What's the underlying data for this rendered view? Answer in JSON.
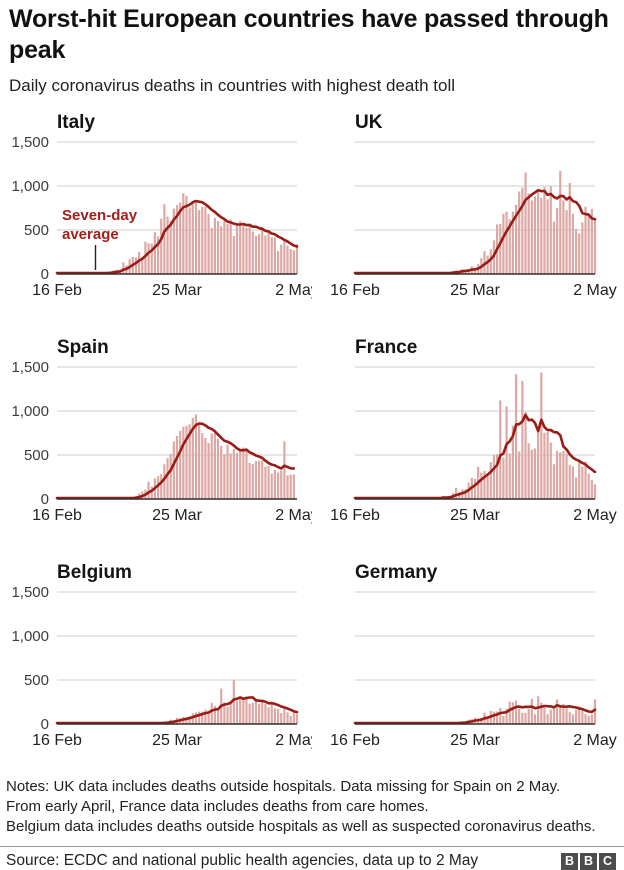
{
  "header": {
    "title": "Worst-hit European countries have passed through peak",
    "subtitle": "Daily coronavirus deaths in countries with highest death toll"
  },
  "footer": {
    "notes_lines": [
      "Notes: UK data includes deaths outside hospitals. Data missing for Spain on 2 May.",
      "From early April, France data includes deaths from care homes.",
      "Belgium data includes deaths outside hospitals as well as suspected coronavirus deaths."
    ],
    "source": "Source: ECDC and national public health agencies, data up to 2 May",
    "logo": [
      "B",
      "B",
      "C"
    ]
  },
  "chart_data": {
    "type": "bar",
    "layout": "small-multiples-2x3",
    "line_overlay": "seven-day trailing average computed from bars",
    "x_start_date": "16 Feb",
    "x_end_date": "2 May",
    "n_days": 77,
    "x_ticks": [
      "16 Feb",
      "25 Mar",
      "2 May"
    ],
    "x_tick_days": [
      0,
      38,
      76
    ],
    "y_ticks": [
      "0",
      "500",
      "1,000",
      "1,500"
    ],
    "y_tick_values": [
      0,
      500,
      1000,
      1500
    ],
    "ylim": [
      0,
      1500
    ],
    "grid": true,
    "annotation": {
      "lines": [
        "Seven-day",
        "average"
      ],
      "on_chart": "Italy"
    },
    "colors": {
      "bar": "#dda8a4",
      "line": "#9a1c17",
      "grid": "#cccccc",
      "axis": "#2e2e2e",
      "annotation_text": "#a21f1c",
      "annotation_pointer": "#222222",
      "tick_text": "#3d3d3d",
      "chart_title": "#141414"
    },
    "charts": [
      {
        "title": "Italy",
        "y_labels": true,
        "has_annotation": true,
        "bars": [
          0,
          0,
          0,
          0,
          0,
          1,
          2,
          3,
          2,
          4,
          5,
          4,
          8,
          5,
          8,
          18,
          27,
          28,
          41,
          49,
          36,
          133,
          97,
          168,
          196,
          189,
          250,
          175,
          368,
          349,
          345,
          475,
          427,
          627,
          793,
          651,
          601,
          743,
          783,
          812,
          919,
          889,
          756,
          812,
          837,
          727,
          760,
          766,
          681,
          525,
          636,
          604,
          542,
          610,
          570,
          619,
          431,
          566,
          602,
          578,
          525,
          575,
          482,
          433,
          454,
          534,
          437,
          464,
          420,
          415,
          260,
          333,
          382,
          323,
          285,
          269,
          339
        ]
      },
      {
        "title": "UK",
        "y_labels": false,
        "has_annotation": false,
        "bars": [
          0,
          0,
          0,
          0,
          0,
          0,
          0,
          0,
          0,
          0,
          0,
          0,
          0,
          0,
          0,
          0,
          0,
          0,
          1,
          1,
          1,
          2,
          1,
          4,
          1,
          6,
          2,
          10,
          14,
          20,
          16,
          32,
          41,
          33,
          56,
          48,
          54,
          87,
          43,
          115,
          181,
          260,
          209,
          280,
          381,
          563,
          569,
          684,
          708,
          621,
          708,
          786,
          938,
          981,
          1152,
          917,
          837,
          878,
          961,
          866,
          988,
          847,
          996,
          596,
          749,
          1172,
          837,
          727,
          1034,
          684,
          513,
          460,
          586,
          765,
          674,
          739,
          621
        ]
      },
      {
        "title": "Spain",
        "y_labels": true,
        "has_annotation": false,
        "bars": [
          0,
          0,
          0,
          0,
          0,
          0,
          0,
          0,
          0,
          0,
          0,
          0,
          0,
          0,
          0,
          0,
          1,
          2,
          1,
          2,
          3,
          5,
          10,
          12,
          24,
          36,
          63,
          88,
          107,
          197,
          141,
          235,
          260,
          282,
          394,
          462,
          514,
          655,
          718,
          773,
          821,
          832,
          849,
          923,
          961,
          850,
          749,
          694,
          637,
          743,
          757,
          683,
          605,
          510,
          619,
          517,
          567,
          523,
          551,
          585,
          565,
          410,
          399,
          430,
          435,
          440,
          367,
          378,
          288,
          331,
          301,
          325,
          655,
          268,
          276,
          281,
          null
        ]
      },
      {
        "title": "France",
        "y_labels": false,
        "has_annotation": false,
        "bars": [
          0,
          0,
          0,
          0,
          0,
          0,
          0,
          0,
          0,
          1,
          2,
          0,
          1,
          1,
          2,
          1,
          3,
          4,
          1,
          3,
          2,
          9,
          11,
          3,
          15,
          13,
          18,
          12,
          36,
          21,
          27,
          69,
          128,
          78,
          112,
          112,
          186,
          240,
          231,
          365,
          299,
          319,
          292,
          418,
          499,
          509,
          1120,
          471,
          1053,
          518,
          833,
          1417,
          541,
          1341,
          987,
          635,
          561,
          574,
          762,
          1438,
          753,
          761,
          642,
          395,
          547,
          531,
          544,
          516,
          389,
          369,
          242,
          437,
          367,
          427,
          289,
          218,
          166
        ]
      },
      {
        "title": "Belgium",
        "y_labels": true,
        "has_annotation": false,
        "bars": [
          0,
          0,
          0,
          0,
          0,
          0,
          0,
          0,
          0,
          0,
          0,
          0,
          0,
          0,
          0,
          0,
          0,
          0,
          0,
          0,
          0,
          0,
          0,
          0,
          1,
          1,
          2,
          3,
          4,
          5,
          4,
          8,
          12,
          16,
          34,
          21,
          49,
          41,
          69,
          64,
          82,
          78,
          89,
          123,
          132,
          140,
          141,
          164,
          122,
          242,
          205,
          171,
          403,
          245,
          196,
          230,
          496,
          262,
          283,
          290,
          313,
          230,
          241,
          266,
          230,
          264,
          228,
          190,
          241,
          178,
          170,
          124,
          186,
          134,
          93,
          130,
          113
        ]
      },
      {
        "title": "Germany",
        "y_labels": false,
        "has_annotation": false,
        "bars": [
          0,
          0,
          0,
          0,
          0,
          0,
          0,
          0,
          0,
          0,
          0,
          0,
          0,
          0,
          0,
          0,
          0,
          0,
          0,
          0,
          0,
          0,
          1,
          1,
          0,
          2,
          2,
          4,
          6,
          5,
          10,
          12,
          22,
          27,
          22,
          23,
          49,
          55,
          72,
          64,
          66,
          128,
          66,
          149,
          140,
          141,
          184,
          92,
          173,
          254,
          246,
          266,
          171,
          129,
          126,
          170,
          285,
          110,
          315,
          242,
          184,
          110,
          163,
          202,
          281,
          215,
          227,
          179,
          140,
          110,
          163,
          202,
          173,
          113,
          94,
          110,
          281
        ]
      }
    ]
  }
}
